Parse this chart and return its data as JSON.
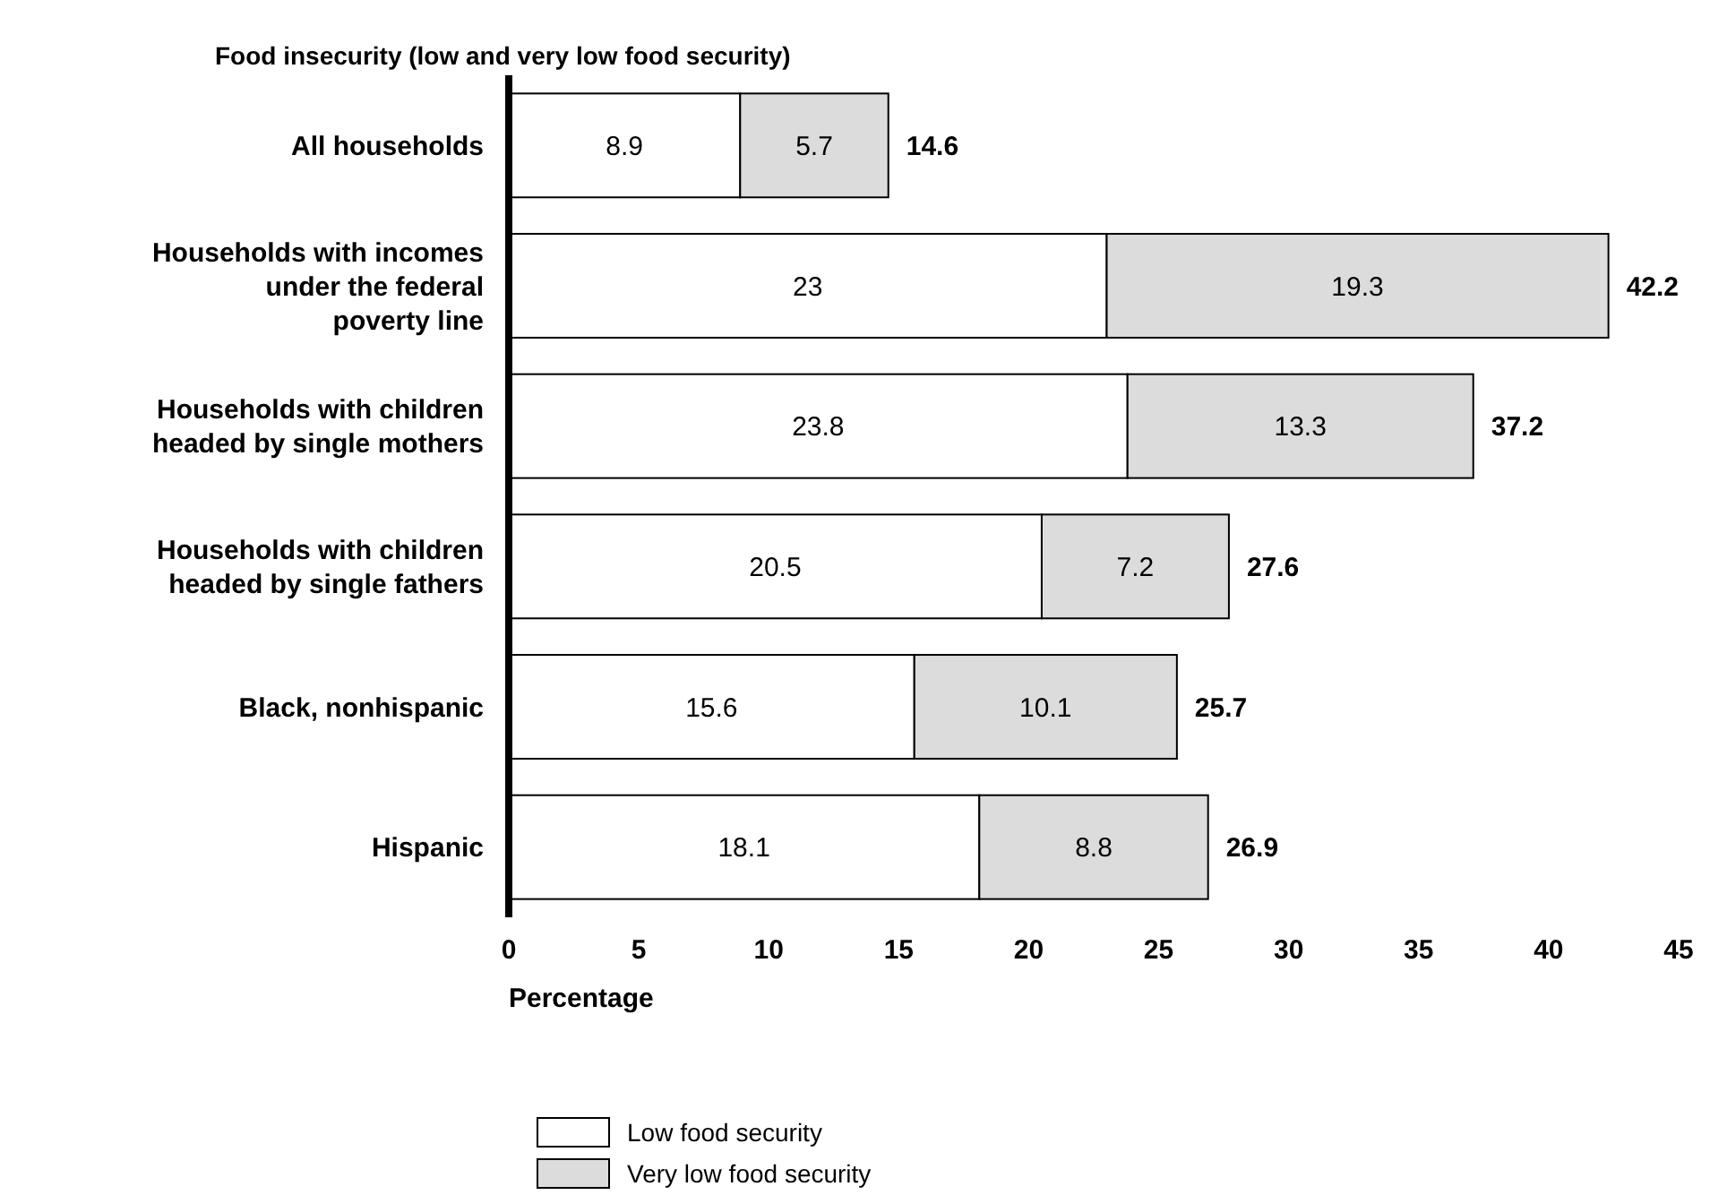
{
  "chart_data": {
    "type": "bar",
    "orientation": "horizontal",
    "stacked": true,
    "title": "Food insecurity (low and very low food security)",
    "xlabel": "Percentage",
    "categories": [
      "All households",
      "Households with incomes under the federal poverty line",
      "Households with children headed by single mothers",
      "Households with children headed by single fathers",
      "Black, nonhispanic",
      "Hispanic"
    ],
    "series": [
      {
        "name": "Low food security",
        "color": "#ffffff",
        "values": [
          8.9,
          23,
          23.8,
          20.5,
          15.6,
          18.1
        ]
      },
      {
        "name": "Very low food security",
        "color": "#dcdcdc",
        "values": [
          5.7,
          19.3,
          13.3,
          7.2,
          10.1,
          8.8
        ]
      }
    ],
    "totals": [
      "14.6",
      "42.2",
      "37.2",
      "27.6",
      "25.7",
      "26.9"
    ],
    "data_labels": true,
    "xlim": [
      0,
      45
    ],
    "xticks": [
      0,
      5,
      10,
      15,
      20,
      25,
      30,
      35,
      40,
      45
    ],
    "grid": false,
    "legend": "bottom"
  }
}
